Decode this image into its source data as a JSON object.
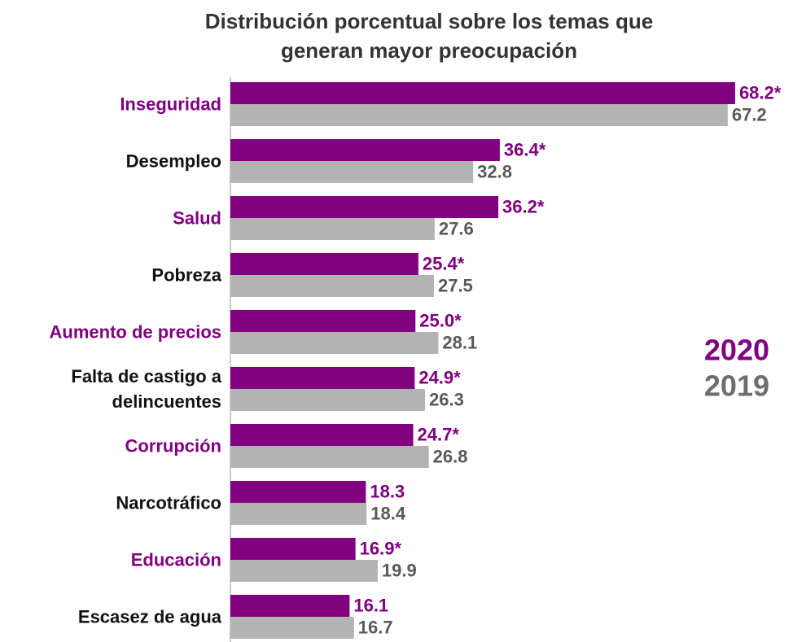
{
  "chart_data": {
    "type": "bar",
    "orientation": "horizontal",
    "title": "Distribución porcentual sobre los temas que\ngeneran mayor preocupación",
    "categories": [
      "Inseguridad",
      "Desempleo",
      "Salud",
      "Pobreza",
      "Aumento de precios",
      "Falta de castigo a\ndelincuentes",
      "Corrupción",
      "Narcotráfico",
      "Educación",
      "Escasez de agua"
    ],
    "series": [
      {
        "name": "2020",
        "color": "#800080",
        "values": [
          68.2,
          36.4,
          36.2,
          25.4,
          25.0,
          24.9,
          24.7,
          18.3,
          16.9,
          16.1
        ],
        "value_labels": [
          "68.2*",
          "36.4*",
          "36.2*",
          "25.4*",
          "25.0*",
          "24.9*",
          "24.7*",
          "18.3",
          "16.9*",
          "16.1"
        ]
      },
      {
        "name": "2019",
        "color": "#b3b3b3",
        "values": [
          67.2,
          32.8,
          27.6,
          27.5,
          28.1,
          26.3,
          26.8,
          18.4,
          19.9,
          16.7
        ]
      }
    ]
  }
}
